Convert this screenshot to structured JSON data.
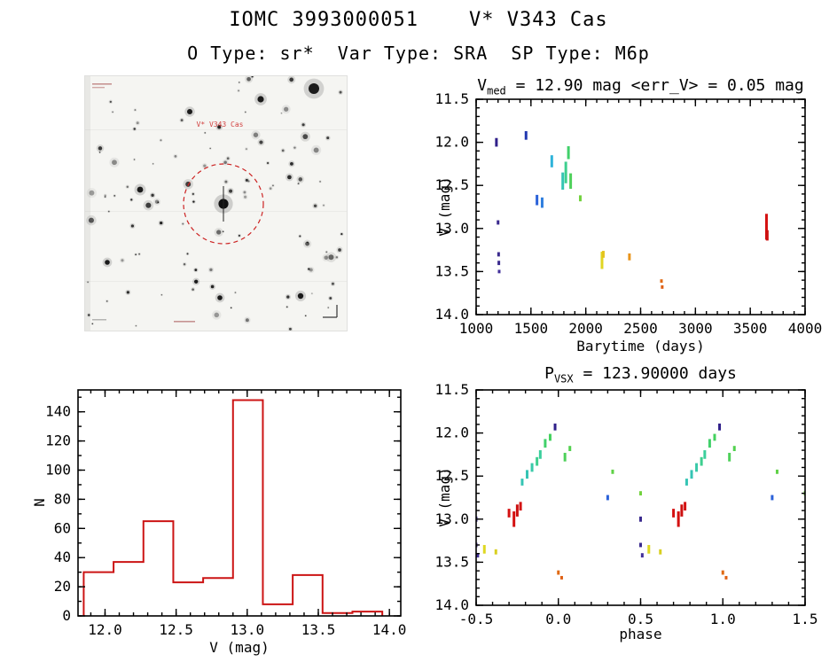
{
  "page": {
    "title": "IOMC 3993000051    V* V343 Cas",
    "subtitle": "O Type: sr*  Var Type: SRA  SP Type: M6p"
  },
  "finding_chart": {
    "target_label": "V* V343 Cas",
    "circle_color": "#cc2222"
  },
  "chart_data": [
    {
      "type": "scatter",
      "name": "light_curve",
      "title": {
        "prefix": "V",
        "sub": "med",
        "rest": " = 12.90 mag <err_V> = 0.05 mag"
      },
      "xlabel": "Barytime (days)",
      "ylabel": "V (mag)",
      "xlim": [
        1000,
        4000
      ],
      "ylim": [
        11.5,
        14.0
      ],
      "y_down": true,
      "x_ticks": [
        [
          1000,
          "1000"
        ],
        [
          1500,
          "1500"
        ],
        [
          2000,
          "2000"
        ],
        [
          2500,
          "2500"
        ],
        [
          3000,
          "3000"
        ],
        [
          3500,
          "3500"
        ],
        [
          4000,
          "4000"
        ]
      ],
      "y_ticks": [
        [
          11.5,
          "11.5"
        ],
        [
          12.0,
          "12.0"
        ],
        [
          12.5,
          "12.5"
        ],
        [
          13.0,
          "13.0"
        ],
        [
          13.5,
          "13.5"
        ],
        [
          14.0,
          "14.0"
        ]
      ],
      "x_minor": 100,
      "y_minor": 0.1,
      "points": [
        [
          1185,
          12.0,
          0.1,
          "#30208a"
        ],
        [
          1200,
          12.93,
          0.05,
          "#3a2a8e"
        ],
        [
          1205,
          13.3,
          0.05,
          "#3a2a8e"
        ],
        [
          1207,
          13.4,
          0.05,
          "#3a2a8e"
        ],
        [
          1210,
          13.5,
          0.04,
          "#42309a"
        ],
        [
          1455,
          11.92,
          0.1,
          "#2238b0"
        ],
        [
          1555,
          12.67,
          0.12,
          "#2b62d9"
        ],
        [
          1602,
          12.7,
          0.12,
          "#2e7ede"
        ],
        [
          1690,
          12.22,
          0.14,
          "#2fb3d9"
        ],
        [
          1790,
          12.45,
          0.2,
          "#35c4b4"
        ],
        [
          1818,
          12.35,
          0.25,
          "#3ecf8f"
        ],
        [
          1842,
          12.12,
          0.15,
          "#41d06a"
        ],
        [
          1862,
          12.45,
          0.18,
          "#4ed05a"
        ],
        [
          1950,
          12.65,
          0.07,
          "#72d23e"
        ],
        [
          2148,
          13.37,
          0.2,
          "#e0d522"
        ],
        [
          2160,
          13.3,
          0.08,
          "#e4c31e"
        ],
        [
          2398,
          13.33,
          0.08,
          "#e8941c"
        ],
        [
          2690,
          13.61,
          0.04,
          "#e06a14"
        ],
        [
          2697,
          13.68,
          0.04,
          "#df5f12"
        ],
        [
          3648,
          12.98,
          0.3,
          "#d41111"
        ],
        [
          3655,
          13.08,
          0.12,
          "#cc0f0f"
        ]
      ]
    },
    {
      "type": "histogram",
      "name": "magnitude_histogram",
      "xlabel": "V (mag)",
      "ylabel": "N",
      "xlim": [
        11.81,
        14.08
      ],
      "ylim": [
        0,
        155
      ],
      "y_down": false,
      "x_ticks": [
        [
          12.0,
          "12.0"
        ],
        [
          12.5,
          "12.5"
        ],
        [
          13.0,
          "13.0"
        ],
        [
          13.5,
          "13.5"
        ],
        [
          14.0,
          "14.0"
        ]
      ],
      "y_ticks": [
        [
          0,
          "0"
        ],
        [
          20,
          "20"
        ],
        [
          40,
          "40"
        ],
        [
          60,
          "60"
        ],
        [
          80,
          "80"
        ],
        [
          100,
          "100"
        ],
        [
          120,
          "120"
        ],
        [
          140,
          "140"
        ]
      ],
      "x_minor": 0.1,
      "y_minor": 10,
      "color": "#cc1414",
      "bin_edges": [
        11.85,
        12.06,
        12.27,
        12.48,
        12.69,
        12.9,
        13.11,
        13.32,
        13.53,
        13.74,
        13.95
      ],
      "counts": [
        30,
        37,
        65,
        23,
        26,
        148,
        8,
        28,
        2,
        3
      ]
    },
    {
      "type": "scatter",
      "name": "phase_curve",
      "title": {
        "prefix": "P",
        "sub": "VSX",
        "rest": " = 123.90000 days"
      },
      "xlabel": "phase",
      "ylabel": "V (mag)",
      "xlim": [
        -0.5,
        1.5
      ],
      "ylim": [
        11.5,
        14.0
      ],
      "y_down": true,
      "duplicate_offset": 1.0,
      "x_ticks": [
        [
          -0.5,
          "-0.5"
        ],
        [
          0.0,
          "0.0"
        ],
        [
          0.5,
          "0.5"
        ],
        [
          1.0,
          "1.0"
        ],
        [
          1.5,
          "1.5"
        ]
      ],
      "y_ticks": [
        [
          11.5,
          "11.5"
        ],
        [
          12.0,
          "12.0"
        ],
        [
          12.5,
          "12.5"
        ],
        [
          13.0,
          "13.0"
        ],
        [
          13.5,
          "13.5"
        ],
        [
          14.0,
          "14.0"
        ]
      ],
      "x_minor": 0.1,
      "y_minor": 0.1,
      "points": [
        [
          -0.5,
          13.0,
          0.06,
          "#3a2a8e"
        ],
        [
          -0.5,
          13.3,
          0.05,
          "#3a2a8e"
        ],
        [
          -0.49,
          13.42,
          0.05,
          "#42309a"
        ],
        [
          -0.45,
          13.35,
          0.1,
          "#ded822"
        ],
        [
          -0.38,
          13.38,
          0.06,
          "#d8cf20"
        ],
        [
          -0.3,
          12.93,
          0.1,
          "#d41111"
        ],
        [
          -0.27,
          13.0,
          0.18,
          "#d41111"
        ],
        [
          -0.25,
          12.9,
          0.14,
          "#cc1010"
        ],
        [
          -0.23,
          12.85,
          0.1,
          "#d41414"
        ],
        [
          -0.22,
          12.57,
          0.08,
          "#35c4b4"
        ],
        [
          -0.19,
          12.48,
          0.1,
          "#35c4b4"
        ],
        [
          -0.16,
          12.4,
          0.1,
          "#38c9a8"
        ],
        [
          -0.13,
          12.33,
          0.1,
          "#3ecf8f"
        ],
        [
          -0.11,
          12.25,
          0.1,
          "#3bcf9c"
        ],
        [
          -0.08,
          12.12,
          0.1,
          "#41d06a"
        ],
        [
          -0.05,
          12.05,
          0.08,
          "#44d15e"
        ],
        [
          -0.02,
          11.93,
          0.08,
          "#30208a"
        ],
        [
          0.0,
          13.62,
          0.05,
          "#e06a14"
        ],
        [
          0.02,
          13.68,
          0.04,
          "#df5f12"
        ],
        [
          0.04,
          12.28,
          0.1,
          "#4ed05a"
        ],
        [
          0.07,
          12.18,
          0.06,
          "#52d14e"
        ],
        [
          0.3,
          12.75,
          0.06,
          "#2b62d9"
        ],
        [
          0.33,
          12.45,
          0.05,
          "#5fd146"
        ],
        [
          0.5,
          12.7,
          0.05,
          "#72d23e"
        ]
      ]
    }
  ]
}
